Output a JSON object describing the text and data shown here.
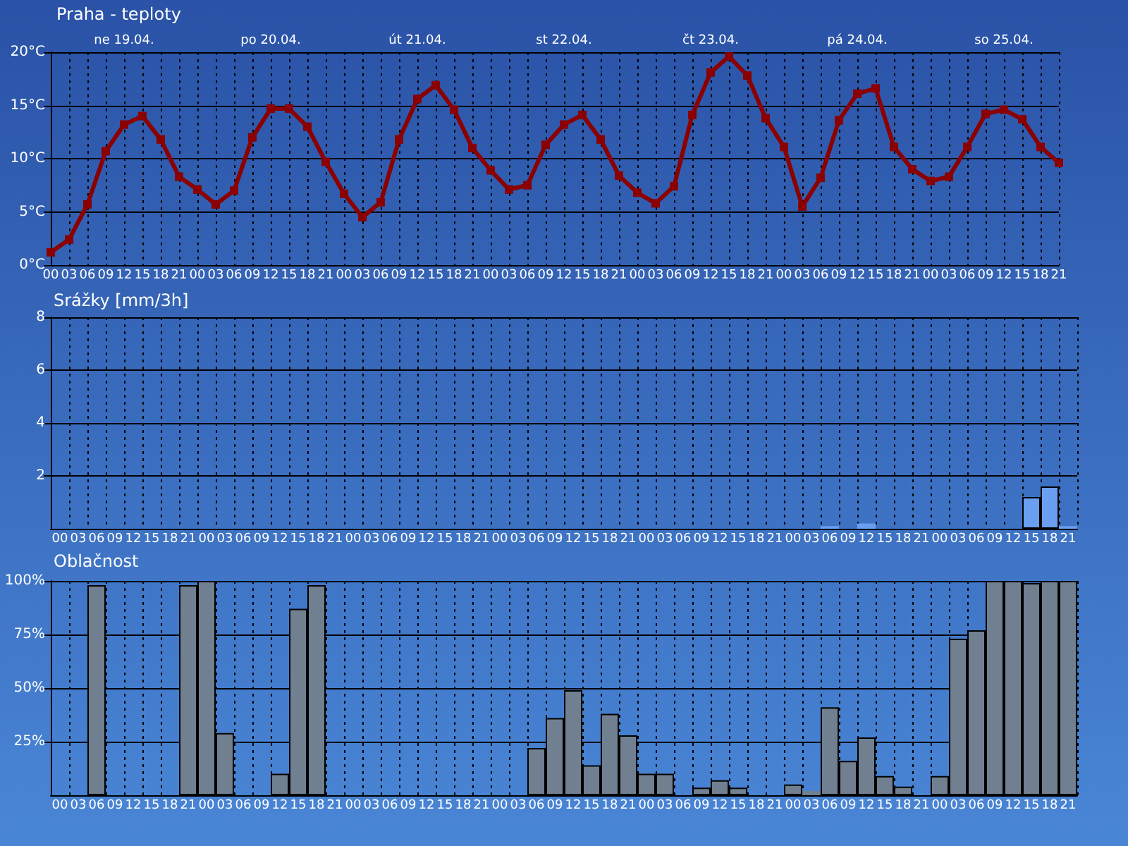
{
  "chart_data": [
    {
      "type": "line",
      "title": "Praha - teploty",
      "categories": [
        "00",
        "03",
        "06",
        "09",
        "12",
        "15",
        "18",
        "21",
        "00",
        "03",
        "06",
        "09",
        "12",
        "15",
        "18",
        "21",
        "00",
        "03",
        "06",
        "09",
        "12",
        "15",
        "18",
        "21",
        "00",
        "03",
        "06",
        "09",
        "12",
        "15",
        "18",
        "21",
        "00",
        "03",
        "06",
        "09",
        "12",
        "15",
        "18",
        "21",
        "00",
        "03",
        "06",
        "09",
        "12",
        "15",
        "18",
        "21",
        "00",
        "03",
        "06",
        "09",
        "12",
        "15",
        "18",
        "21"
      ],
      "series": [
        {
          "color": "#8b0000",
          "values": [
            1.2,
            2.4,
            5.7,
            10.7,
            13.2,
            14.0,
            11.8,
            8.3,
            7.1,
            5.7,
            7.0,
            12.0,
            14.7,
            14.7,
            13.0,
            9.7,
            6.7,
            4.5,
            5.9,
            11.8,
            15.6,
            16.9,
            14.6,
            11.0,
            8.9,
            7.1,
            7.5,
            11.3,
            13.2,
            14.1,
            11.8,
            8.4,
            6.8,
            5.8,
            7.4,
            14.1,
            18.1,
            19.6,
            17.8,
            13.8,
            11.1,
            5.5,
            8.2,
            13.6,
            16.1,
            16.6,
            11.1,
            9.0,
            7.9,
            8.3,
            11.1,
            14.2,
            14.6,
            13.7,
            11.1,
            9.6
          ]
        }
      ],
      "ylim": [
        0,
        20
      ],
      "yticks": [
        {
          "value": 0,
          "label": "0°C"
        },
        {
          "value": 5,
          "label": "5°C"
        },
        {
          "value": 10,
          "label": "10°C"
        },
        {
          "value": 15,
          "label": "15°C"
        },
        {
          "value": 20,
          "label": "20°C"
        }
      ],
      "grid": true,
      "marker": "square",
      "annotations": [
        "ne 19.04.",
        "po 20.04.",
        "út 21.04.",
        "st 22.04.",
        "čt 23.04.",
        "pá 24.04.",
        "so 25.04."
      ]
    },
    {
      "type": "bar",
      "title": "Srážky [mm/3h]",
      "categories": [
        "00",
        "03",
        "06",
        "09",
        "12",
        "15",
        "18",
        "21",
        "00",
        "03",
        "06",
        "09",
        "12",
        "15",
        "18",
        "21",
        "00",
        "03",
        "06",
        "09",
        "12",
        "15",
        "18",
        "21",
        "00",
        "03",
        "06",
        "09",
        "12",
        "15",
        "18",
        "21",
        "00",
        "03",
        "06",
        "09",
        "12",
        "15",
        "18",
        "21",
        "00",
        "03",
        "06",
        "09",
        "12",
        "15",
        "18",
        "21",
        "00",
        "03",
        "06",
        "09",
        "12",
        "15",
        "18",
        "21"
      ],
      "values": [
        0,
        0,
        0,
        0,
        0,
        0,
        0,
        0,
        0,
        0,
        0,
        0,
        0,
        0,
        0,
        0,
        0,
        0,
        0,
        0,
        0,
        0,
        0,
        0,
        0,
        0,
        0,
        0,
        0,
        0,
        0,
        0,
        0,
        0,
        0,
        0,
        0,
        0,
        0,
        0,
        0,
        0,
        0.1,
        0,
        0.2,
        0,
        0,
        0,
        0,
        0,
        0,
        0,
        0,
        1.2,
        1.6,
        0.1
      ],
      "color": "#6a9ef0",
      "ylim": [
        0,
        8
      ],
      "yticks": [
        2,
        4,
        6,
        8
      ],
      "grid": true
    },
    {
      "type": "bar",
      "title": "Oblačnost",
      "categories": [
        "00",
        "03",
        "06",
        "09",
        "12",
        "15",
        "18",
        "21",
        "00",
        "03",
        "06",
        "09",
        "12",
        "15",
        "18",
        "21",
        "00",
        "03",
        "06",
        "09",
        "12",
        "15",
        "18",
        "21",
        "00",
        "03",
        "06",
        "09",
        "12",
        "15",
        "18",
        "21",
        "00",
        "03",
        "06",
        "09",
        "12",
        "15",
        "18",
        "21",
        "00",
        "03",
        "06",
        "09",
        "12",
        "15",
        "18",
        "21",
        "00",
        "03",
        "06",
        "09",
        "12",
        "15",
        "18",
        "21"
      ],
      "values": [
        0,
        0,
        98,
        0,
        0,
        0,
        0,
        98,
        100,
        29,
        0,
        0,
        10,
        87,
        98,
        0,
        0,
        0,
        0,
        0,
        0,
        0,
        0,
        0,
        0,
        0,
        22,
        36,
        49,
        14,
        38,
        28,
        10,
        10,
        0,
        3.5,
        7,
        3.5,
        0,
        0,
        5,
        2,
        41,
        16,
        27,
        9,
        4,
        0,
        9,
        73,
        77,
        100,
        100,
        99,
        100,
        100
      ],
      "color": "#708090",
      "ylim": [
        0,
        100
      ],
      "yticks": [
        {
          "value": 25,
          "label": "25%"
        },
        {
          "value": 50,
          "label": "50%"
        },
        {
          "value": 75,
          "label": "75%"
        },
        {
          "value": 100,
          "label": "100%"
        }
      ],
      "grid": true
    }
  ]
}
